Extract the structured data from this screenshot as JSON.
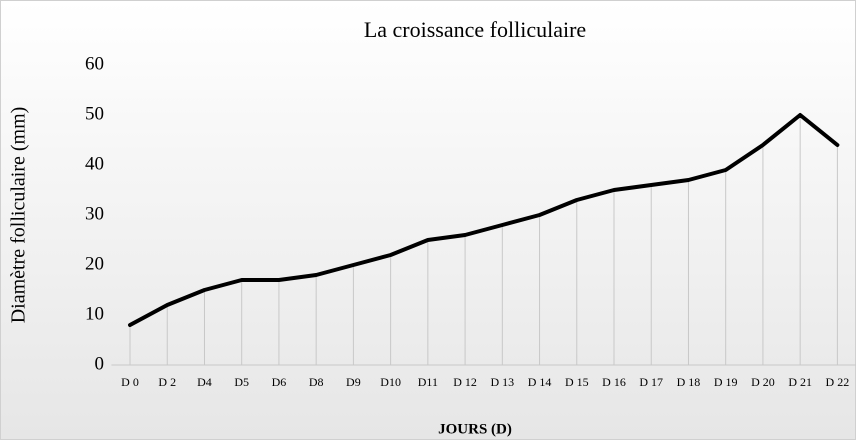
{
  "chart_data": {
    "type": "line",
    "title": "La croissance folliculaire",
    "x_label": "JOURS (D)",
    "y_label": "Diamètre folliculaire (mm)",
    "categories": [
      "D 0",
      "D 2",
      "D4",
      "D5",
      "D6",
      "D8",
      "D9",
      "D10",
      "D11",
      "D 12",
      "D 13",
      "D 14",
      "D 15",
      "D 16",
      "D 17",
      "D 18",
      "D 19",
      "D 20",
      "D 21",
      "D 22"
    ],
    "values": [
      8,
      12,
      15,
      17,
      17,
      18,
      20,
      22,
      25,
      26,
      28,
      30,
      33,
      35,
      36,
      37,
      39,
      44,
      50,
      44
    ],
    "color": "#000000",
    "drop_lines": true,
    "ylim": [
      0,
      60
    ],
    "yticks": [
      0,
      10,
      20,
      30,
      40,
      50,
      60
    ]
  }
}
